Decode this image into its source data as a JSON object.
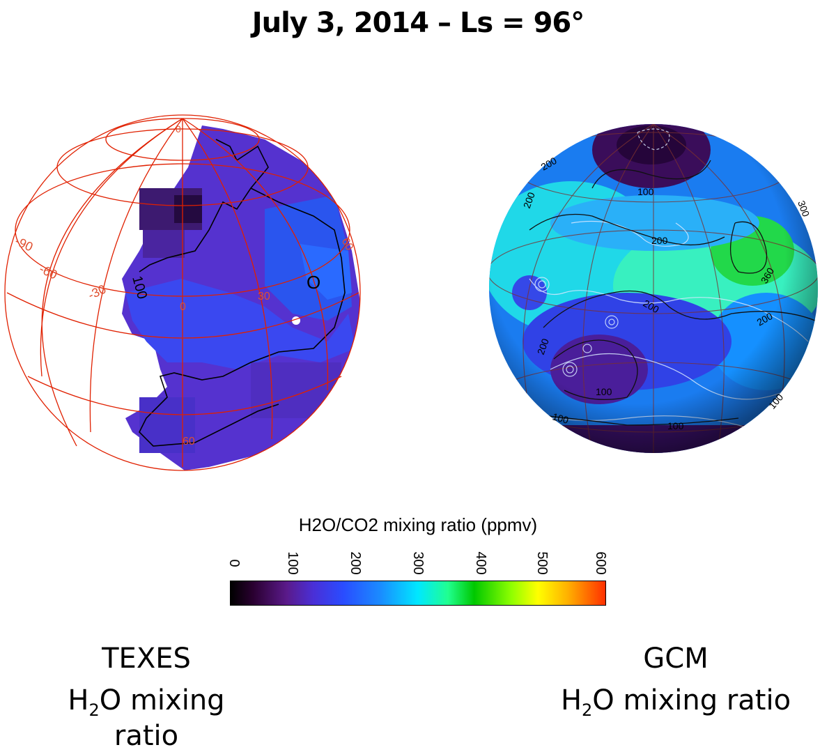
{
  "title": "July 3, 2014 – Ls = 96°",
  "left_globe": {
    "grid_labels": [
      "-90",
      "-60",
      "-30",
      "0",
      "30",
      "60",
      "0",
      "60"
    ],
    "contour_label": "100",
    "marker_letter": "O"
  },
  "right_globe": {
    "contour_labels": [
      "200",
      "200",
      "100",
      "200",
      "360",
      "300",
      "200",
      "200",
      "200",
      "100",
      "100",
      "100",
      "100"
    ]
  },
  "colorbar": {
    "title": "H2O/CO2 mixing ratio (ppmv)",
    "ticks": [
      "0",
      "100",
      "200",
      "300",
      "400",
      "500",
      "600"
    ],
    "range": [
      0,
      600
    ]
  },
  "captions": {
    "left_line1": "TEXES",
    "left_line2_pre": "H",
    "left_line2_sub": "2",
    "left_line2_post": "O mixing ratio",
    "right_line1": "GCM",
    "right_line2_pre": "H",
    "right_line2_sub": "2",
    "right_line2_post": "O mixing ratio"
  }
}
